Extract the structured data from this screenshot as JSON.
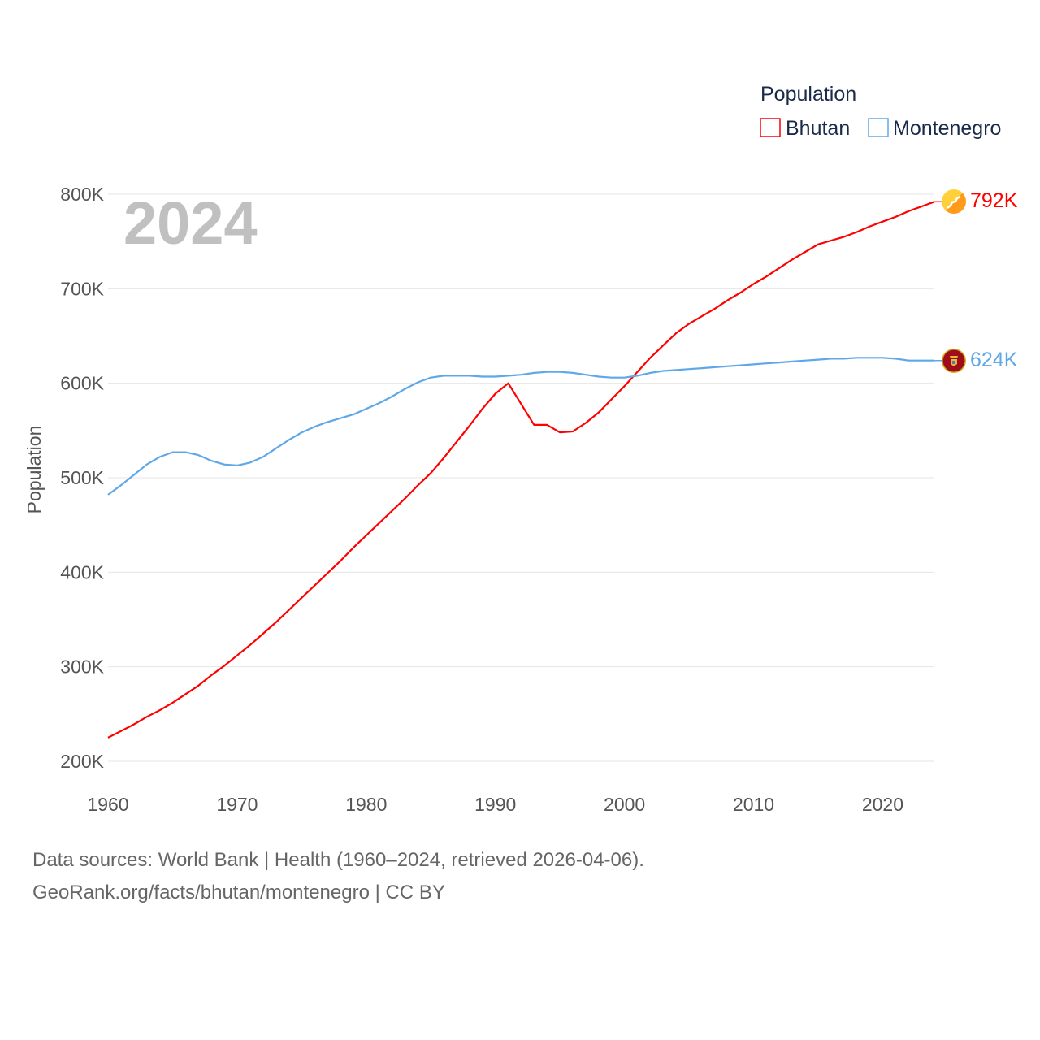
{
  "chart_data": {
    "type": "line",
    "title": "",
    "year_label": "2024",
    "xlabel": "",
    "ylabel": "Population",
    "xlim": [
      1960,
      2024
    ],
    "ylim": [
      200000,
      800000
    ],
    "x_ticks": [
      1960,
      1970,
      1980,
      1990,
      2000,
      2010,
      2020
    ],
    "y_ticks": [
      200000,
      300000,
      400000,
      500000,
      600000,
      700000,
      800000
    ],
    "y_tick_labels": [
      "200K",
      "300K",
      "400K",
      "500K",
      "600K",
      "700K",
      "800K"
    ],
    "grid": true,
    "legend": {
      "title": "Population",
      "position": "top-right"
    },
    "x": [
      1960,
      1961,
      1962,
      1963,
      1964,
      1965,
      1966,
      1967,
      1968,
      1969,
      1970,
      1971,
      1972,
      1973,
      1974,
      1975,
      1976,
      1977,
      1978,
      1979,
      1980,
      1981,
      1982,
      1983,
      1984,
      1985,
      1986,
      1987,
      1988,
      1989,
      1990,
      1991,
      1992,
      1993,
      1994,
      1995,
      1996,
      1997,
      1998,
      1999,
      2000,
      2001,
      2002,
      2003,
      2004,
      2005,
      2006,
      2007,
      2008,
      2009,
      2010,
      2011,
      2012,
      2013,
      2014,
      2015,
      2016,
      2017,
      2018,
      2019,
      2020,
      2021,
      2022,
      2023,
      2024
    ],
    "series": [
      {
        "name": "Bhutan",
        "color": "#ff0000",
        "end_label": "792K",
        "flag": "bhutan-flag",
        "values": [
          225,
          232,
          239,
          247,
          254,
          262,
          271,
          280,
          291,
          301,
          312,
          323,
          335,
          347,
          360,
          373,
          386,
          399,
          412,
          426,
          439,
          452,
          465,
          478,
          492,
          505,
          521,
          538,
          555,
          573,
          589,
          600,
          578,
          556,
          556,
          548,
          549,
          558,
          569,
          583,
          597,
          612,
          627,
          640,
          653,
          663,
          671,
          679,
          688,
          696,
          705,
          713,
          722,
          731,
          739,
          747,
          751,
          755,
          760,
          766,
          771,
          776,
          782,
          787,
          792
        ]
      },
      {
        "name": "Montenegro",
        "color": "#5fa8e8",
        "end_label": "624K",
        "flag": "montenegro-flag",
        "values": [
          482,
          492,
          503,
          514,
          522,
          527,
          527,
          524,
          518,
          514,
          513,
          516,
          522,
          531,
          540,
          548,
          554,
          559,
          563,
          567,
          573,
          579,
          586,
          594,
          601,
          606,
          608,
          608,
          608,
          607,
          607,
          608,
          609,
          611,
          612,
          612,
          611,
          609,
          607,
          606,
          606,
          608,
          611,
          613,
          614,
          615,
          616,
          617,
          618,
          619,
          620,
          621,
          622,
          623,
          624,
          625,
          626,
          626,
          627,
          627,
          627,
          626,
          624,
          624,
          624
        ]
      }
    ],
    "value_unit": "thousands"
  },
  "footer": {
    "line1": "Data sources: World Bank | Health (1960–2024, retrieved 2026-04-06).",
    "line2": "GeoRank.org/facts/bhutan/montenegro | CC BY"
  }
}
